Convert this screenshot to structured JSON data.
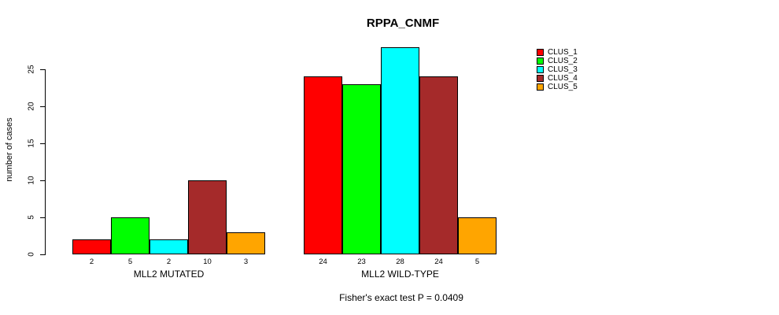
{
  "title": "RPPA_CNMF",
  "y_axis_label": "number of cases",
  "annotation": "Fisher's exact test P = 0.0409",
  "chart_data": {
    "type": "bar",
    "title": "RPPA_CNMF",
    "xlabel": "",
    "ylabel": "number of cases",
    "ylim": [
      0,
      28
    ],
    "yticks": [
      0,
      5,
      10,
      15,
      20,
      25
    ],
    "grid": false,
    "legend_position": "right",
    "categories": [
      "MLL2 MUTATED",
      "MLL2 WILD-TYPE"
    ],
    "series": [
      {
        "name": "CLUS_1",
        "color": "#FF0000",
        "values": [
          2,
          24
        ]
      },
      {
        "name": "CLUS_2",
        "color": "#00FF00",
        "values": [
          5,
          23
        ]
      },
      {
        "name": "CLUS_3",
        "color": "#00FFFF",
        "values": [
          2,
          28
        ]
      },
      {
        "name": "CLUS_4",
        "color": "#A52A2A",
        "values": [
          10,
          24
        ]
      },
      {
        "name": "CLUS_5",
        "color": "#FFA500",
        "values": [
          3,
          5
        ]
      }
    ],
    "bar_value_labels": [
      [
        "2",
        "5",
        "2",
        "10",
        "3"
      ],
      [
        "24",
        "23",
        "28",
        "24",
        "5"
      ]
    ],
    "annotation": "Fisher's exact test P = 0.0409",
    "bar_border_color": "#000000",
    "background_color": "#FFFFFF"
  }
}
